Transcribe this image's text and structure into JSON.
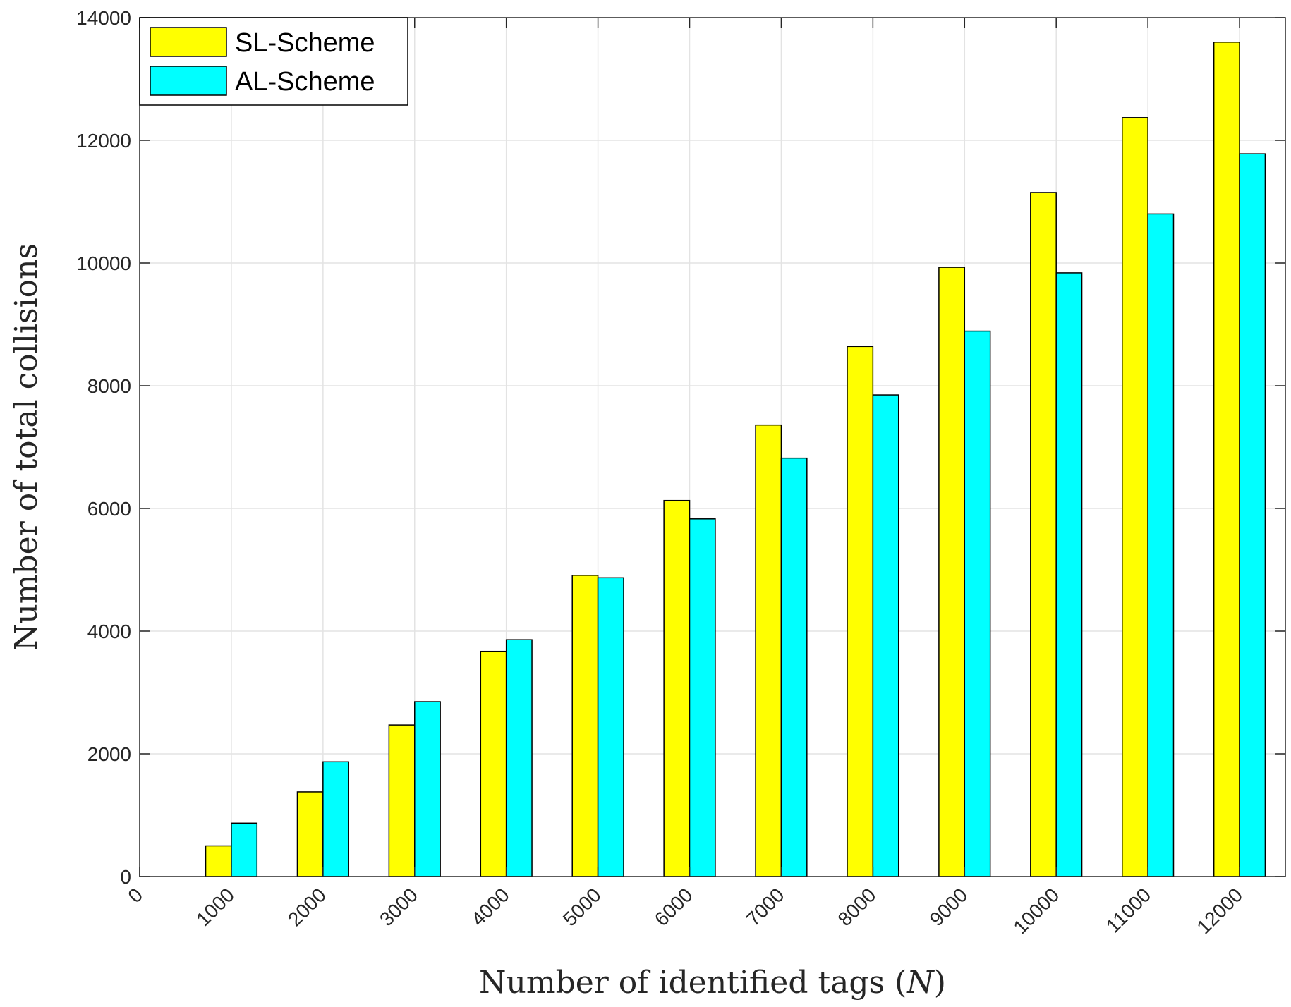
{
  "chart_data": {
    "type": "bar",
    "xlabel_prefix": "Number of identified tags (",
    "xlabel_var": "N",
    "xlabel_suffix": ")",
    "ylabel": "Number of total collisions",
    "x_ticks": [
      "0",
      "1000",
      "2000",
      "3000",
      "4000",
      "5000",
      "6000",
      "7000",
      "8000",
      "9000",
      "10000",
      "11000",
      "12000"
    ],
    "categories": [
      1000,
      2000,
      3000,
      4000,
      5000,
      6000,
      7000,
      8000,
      9000,
      10000,
      11000,
      12000
    ],
    "y_ticks": [
      "0",
      "2000",
      "4000",
      "6000",
      "8000",
      "10000",
      "12000",
      "14000"
    ],
    "ylim": [
      0,
      14000
    ],
    "xlim": [
      0,
      12500
    ],
    "grid": true,
    "legend_position": "top-left",
    "series": [
      {
        "name": "SL-Scheme",
        "color": "#ffff00",
        "values": [
          500,
          1380,
          2470,
          3670,
          4910,
          6130,
          7360,
          8640,
          9930,
          11150,
          12370,
          13600
        ]
      },
      {
        "name": "AL-Scheme",
        "color": "#00ffff",
        "values": [
          870,
          1870,
          2850,
          3860,
          4870,
          5830,
          6820,
          7850,
          8890,
          9840,
          10800,
          11780
        ]
      }
    ]
  }
}
